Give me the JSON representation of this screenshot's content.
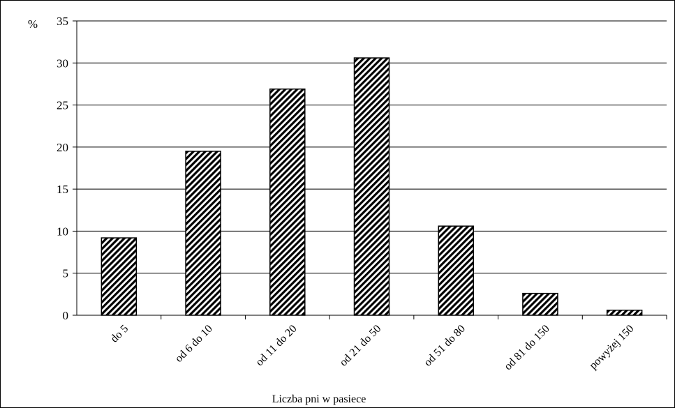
{
  "chart_data": {
    "type": "bar",
    "ylabel": "%",
    "xlabel": "Liczba pni w pasiece",
    "categories": [
      "do 5",
      "od 6 do 10",
      "od 11 do 20",
      "od 21 do 50",
      "od 51 do 80",
      "od 81 do 150",
      "powyżej 150"
    ],
    "values": [
      9.2,
      19.5,
      26.9,
      30.6,
      10.6,
      2.6,
      0.6
    ],
    "ylim": [
      0,
      35
    ],
    "yticks": [
      "0",
      "5",
      "10",
      "15",
      "20",
      "25",
      "30",
      "35"
    ],
    "grid": true,
    "bar_fill": "diagonal-hatch",
    "colors": {
      "bar_stroke": "#000000",
      "hatch": "#000000",
      "background": "#ffffff",
      "grid": "#000000"
    }
  }
}
